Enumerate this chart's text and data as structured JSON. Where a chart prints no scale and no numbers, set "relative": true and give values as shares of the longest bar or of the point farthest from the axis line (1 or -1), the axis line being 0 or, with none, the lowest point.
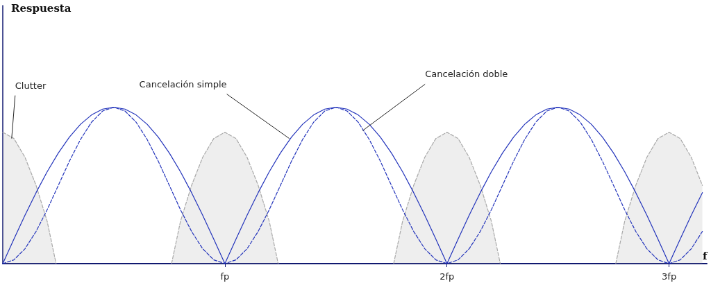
{
  "chart_data": {
    "type": "line",
    "relative": true,
    "xlabel": "f",
    "x": [
      0,
      0.05,
      0.1,
      0.15,
      0.2,
      0.25,
      0.3,
      0.35,
      0.4,
      0.45,
      0.5,
      0.55,
      0.6,
      0.65,
      0.7,
      0.75,
      0.8,
      0.85,
      0.9,
      0.95,
      1,
      1.05,
      1.1,
      1.15,
      1.2,
      1.25,
      1.3,
      1.35,
      1.4,
      1.45,
      1.5,
      1.55,
      1.6,
      1.65,
      1.7,
      1.75,
      1.8,
      1.85,
      1.9,
      1.95,
      2,
      2.05,
      2.1,
      2.15,
      2.2,
      2.25,
      2.3,
      2.35,
      2.4,
      2.45,
      2.5,
      2.55,
      2.6,
      2.65,
      2.7,
      2.75,
      2.8,
      2.85,
      2.9,
      2.95,
      3,
      3.05,
      3.1,
      3.15
    ],
    "xlim": [
      0,
      3.17
    ],
    "xticks": [
      {
        "value": 1,
        "label": "fp"
      },
      {
        "value": 2,
        "label": "2fp"
      },
      {
        "value": 3,
        "label": "3fp"
      }
    ],
    "tick_labels": "x",
    "marker": "none",
    "series": [
      {
        "type": "area",
        "color": "#a8a8a8",
        "line_style": "dashed",
        "x": [
          0,
          0.05,
          0.1,
          0.15,
          0.2,
          0.24,
          0.5,
          0.76,
          0.8,
          0.85,
          0.9,
          0.95,
          1,
          1.05,
          1.1,
          1.15,
          1.2,
          1.24,
          1.5,
          1.76,
          1.8,
          1.85,
          1.9,
          1.95,
          2,
          2.05,
          2.1,
          2.15,
          2.2,
          2.24,
          2.5,
          2.76,
          2.8,
          2.85,
          2.9,
          2.95,
          3,
          3.05,
          3.1,
          3.15
        ],
        "values": [
          0.84,
          0.8,
          0.68,
          0.5,
          0.27,
          0,
          null,
          0,
          0.27,
          0.5,
          0.68,
          0.8,
          0.84,
          0.8,
          0.68,
          0.5,
          0.27,
          0,
          null,
          0,
          0.27,
          0.5,
          0.68,
          0.8,
          0.84,
          0.8,
          0.68,
          0.5,
          0.27,
          0,
          null,
          0,
          0.27,
          0.5,
          0.68,
          0.8,
          0.84,
          0.8,
          0.68,
          0.5
        ]
      },
      {
        "color": "#2233bb",
        "line_style": "solid",
        "values": [
          0,
          0.156,
          0.309,
          0.454,
          0.588,
          0.707,
          0.809,
          0.891,
          0.951,
          0.988,
          1,
          0.988,
          0.951,
          0.891,
          0.809,
          0.707,
          0.588,
          0.454,
          0.309,
          0.156,
          0,
          0.156,
          0.309,
          0.454,
          0.588,
          0.707,
          0.809,
          0.891,
          0.951,
          0.988,
          1,
          0.988,
          0.951,
          0.891,
          0.809,
          0.707,
          0.588,
          0.454,
          0.309,
          0.156,
          0,
          0.156,
          0.309,
          0.454,
          0.588,
          0.707,
          0.809,
          0.891,
          0.951,
          0.988,
          1,
          0.988,
          0.951,
          0.891,
          0.809,
          0.707,
          0.588,
          0.454,
          0.309,
          0.156,
          0,
          0.156,
          0.309,
          0.454
        ]
      },
      {
        "color": "#2233bb",
        "line_style": "dashed",
        "values": [
          0,
          0.024,
          0.095,
          0.206,
          0.345,
          0.5,
          0.655,
          0.794,
          0.905,
          0.976,
          1,
          0.976,
          0.905,
          0.794,
          0.655,
          0.5,
          0.345,
          0.206,
          0.095,
          0.024,
          0,
          0.024,
          0.095,
          0.206,
          0.345,
          0.5,
          0.655,
          0.794,
          0.905,
          0.976,
          1,
          0.976,
          0.905,
          0.794,
          0.655,
          0.5,
          0.345,
          0.206,
          0.095,
          0.024,
          0,
          0.024,
          0.095,
          0.206,
          0.345,
          0.5,
          0.655,
          0.794,
          0.905,
          0.976,
          1,
          0.976,
          0.905,
          0.794,
          0.655,
          0.5,
          0.345,
          0.206,
          0.095,
          0.024,
          0,
          0.024,
          0.095,
          0.206
        ]
      }
    ],
    "annotations": [
      "Respuesta",
      {
        "text": "Clutter",
        "x": 0.04,
        "y": 0.8
      },
      {
        "text": "Cancelación simple",
        "x": 1.29,
        "y": 0.8
      },
      {
        "text": "Cancelación doble",
        "x": 1.62,
        "y": 0.85
      }
    ]
  }
}
